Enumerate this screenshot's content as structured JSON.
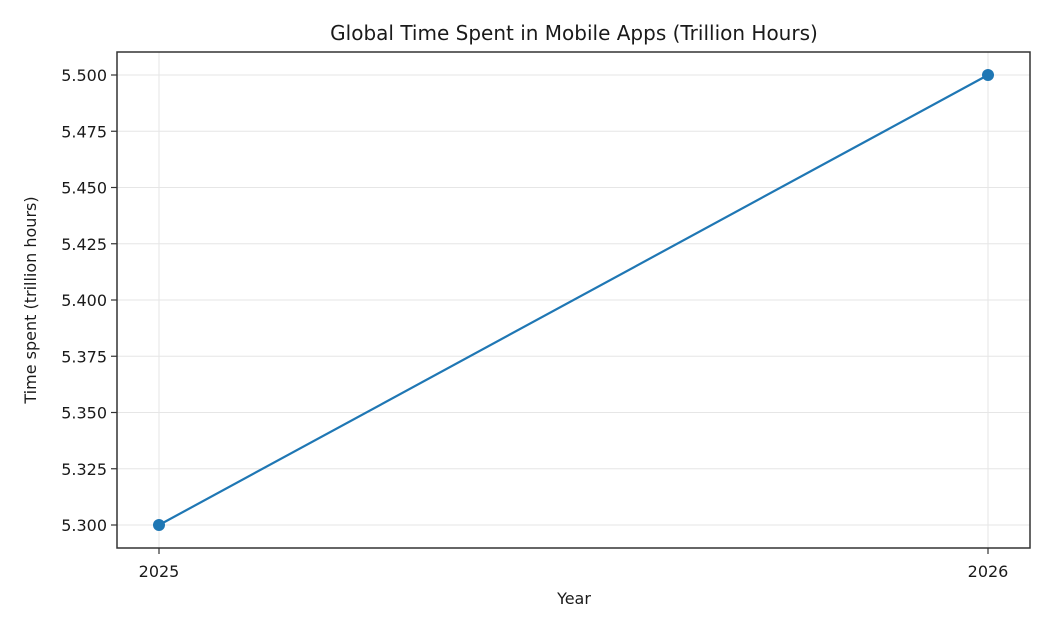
{
  "chart_data": {
    "type": "line",
    "title": "Global Time Spent in Mobile Apps (Trillion Hours)",
    "xlabel": "Year",
    "ylabel": "Time spent (trillion hours)",
    "x": [
      "2025",
      "2026"
    ],
    "series": [
      {
        "name": "Time spent",
        "values": [
          5.3,
          5.5
        ],
        "color": "#1f77b4",
        "marker": "circle"
      }
    ],
    "ylim": [
      5.29,
      5.51
    ],
    "yticks": [
      "5.300",
      "5.325",
      "5.350",
      "5.375",
      "5.400",
      "5.425",
      "5.450",
      "5.475",
      "5.500"
    ],
    "xticks": [
      "2025",
      "2026"
    ],
    "grid": true,
    "legend": null
  }
}
